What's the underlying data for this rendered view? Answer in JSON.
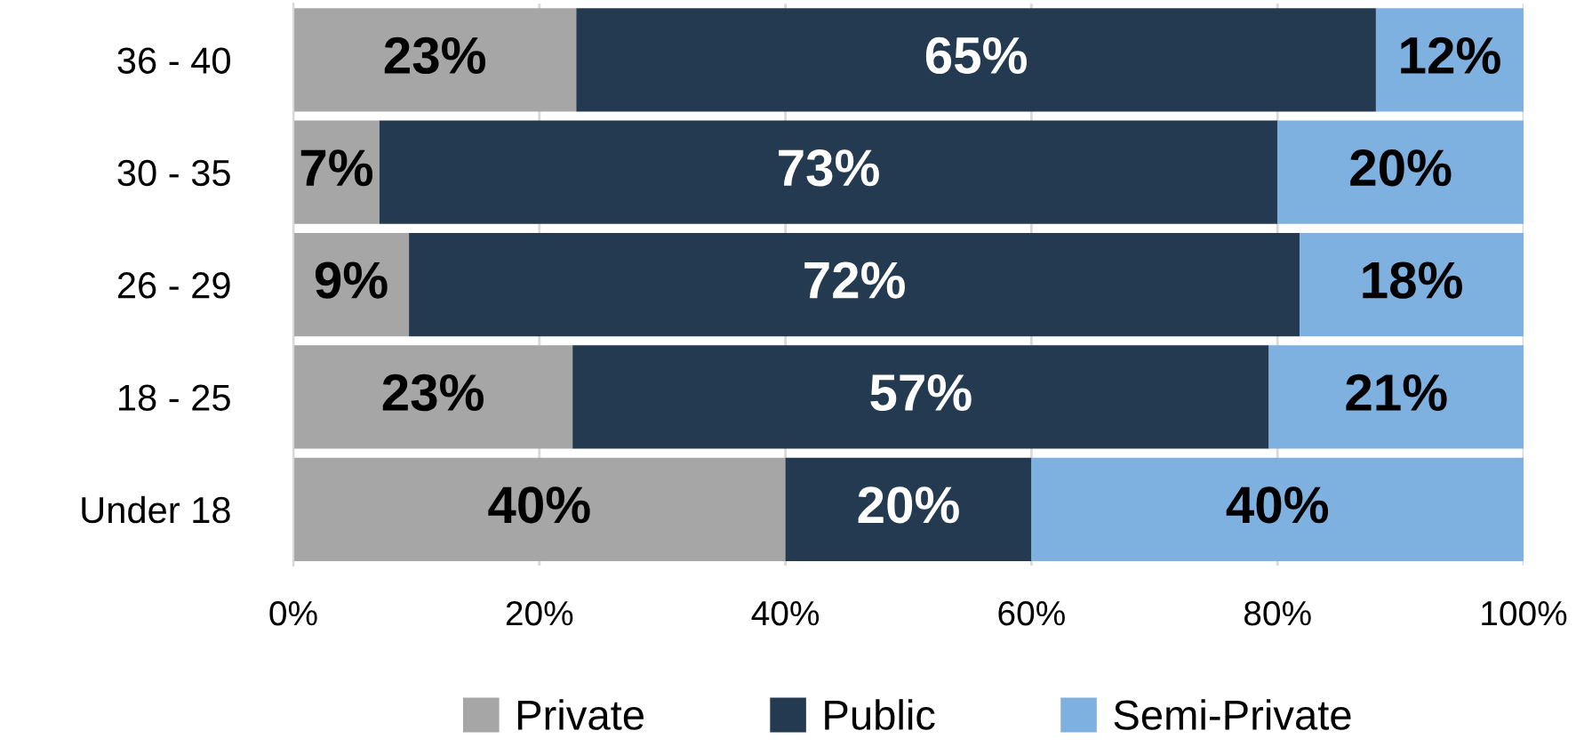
{
  "chart_data": {
    "type": "bar",
    "orientation": "horizontal",
    "stacked": true,
    "categories": [
      "36 - 40",
      "30 - 35",
      "26 - 29",
      "18 - 25",
      "Under 18"
    ],
    "series": [
      {
        "name": "Private",
        "color": "#a6a6a6",
        "values": [
          23,
          7,
          9.4,
          22.7,
          40
        ],
        "value_labels": [
          "23%",
          "7%",
          "9%",
          "23%",
          "40%"
        ]
      },
      {
        "name": "Public",
        "color": "#243a51",
        "values": [
          65,
          73,
          72.4,
          56.6,
          20
        ],
        "value_labels": [
          "65%",
          "73%",
          "72%",
          "57%",
          "20%"
        ]
      },
      {
        "name": "Semi-Private",
        "color": "#7eb0e0",
        "values": [
          12,
          20,
          18.2,
          20.7,
          40
        ],
        "value_labels": [
          "12%",
          "20%",
          "18%",
          "21%",
          "40%"
        ]
      }
    ],
    "xlim": [
      0,
      100
    ],
    "xticks": [
      {
        "value": 0,
        "label": "0%"
      },
      {
        "value": 20,
        "label": "20%"
      },
      {
        "value": 40,
        "label": "40%"
      },
      {
        "value": 60,
        "label": "60%"
      },
      {
        "value": 80,
        "label": "80%"
      },
      {
        "value": 100,
        "label": "100%"
      }
    ],
    "grid": "x",
    "legend": "bottom"
  }
}
